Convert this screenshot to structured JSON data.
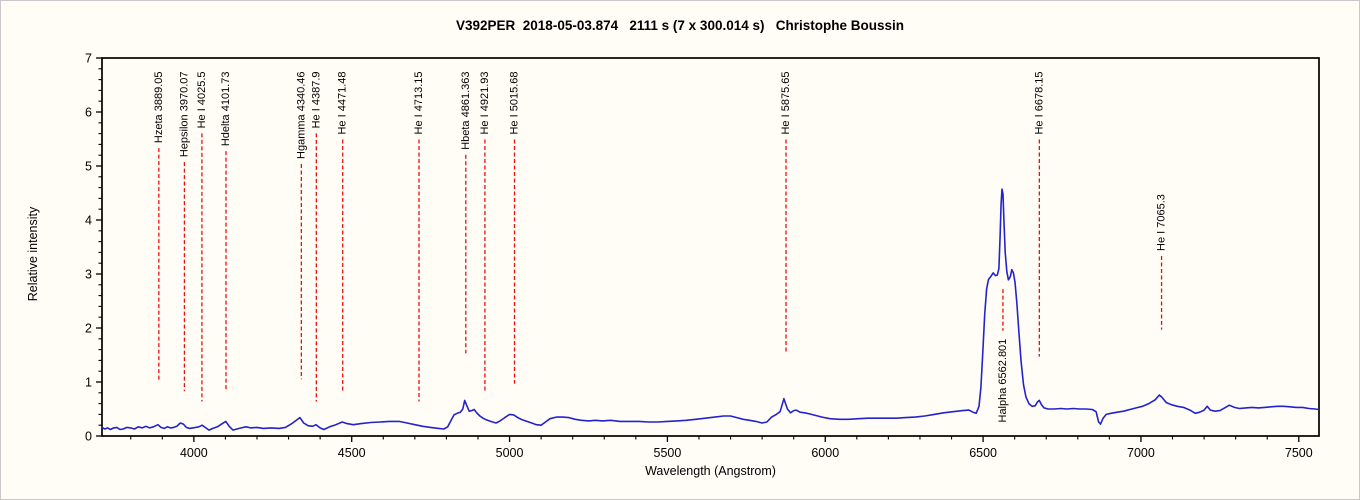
{
  "chart_data": {
    "type": "line",
    "title": "V392PER  2018-05-03.874   2111 s (7 x 300.014 s)   Christophe Boussin",
    "xlabel": "Wavelength (Angstrom)",
    "ylabel": "Relative intensity",
    "xlim": [
      3709,
      7564
    ],
    "ylim": [
      0,
      7
    ],
    "x_major_ticks": [
      4000,
      4500,
      5000,
      5500,
      6000,
      6500,
      7000,
      7500
    ],
    "x_minor_step": 100,
    "y_major_ticks": [
      0,
      1,
      2,
      3,
      4,
      5,
      6,
      7
    ],
    "y_minor_step": 0.2,
    "grid": false,
    "legend": null,
    "line_color": "#2323cd",
    "marker_color": "#e81010",
    "frame_color": "#000000",
    "spectral_line_markers": [
      {
        "label": "Hzeta 3889.05",
        "wavelength": 3889.05,
        "label_pos": "top",
        "anchor": 6.75,
        "dash_end": 1.02
      },
      {
        "label": "Hepsilon 3970.07",
        "wavelength": 3970.07,
        "label_pos": "top",
        "anchor": 6.75,
        "dash_end": 0.83
      },
      {
        "label": "He I 4025.5",
        "wavelength": 4025.5,
        "label_pos": "top",
        "anchor": 6.75,
        "dash_end": 0.64
      },
      {
        "label": "Hdelta 4101.73",
        "wavelength": 4101.73,
        "label_pos": "top",
        "anchor": 6.75,
        "dash_end": 0.82
      },
      {
        "label": "Hgamma 4340.46",
        "wavelength": 4340.46,
        "label_pos": "top",
        "anchor": 6.75,
        "dash_end": 1.05
      },
      {
        "label": "He I 4387.9",
        "wavelength": 4387.9,
        "label_pos": "top",
        "anchor": 6.75,
        "dash_end": 0.64
      },
      {
        "label": "He I 4471.48",
        "wavelength": 4471.48,
        "label_pos": "top",
        "anchor": 6.75,
        "dash_end": 0.82
      },
      {
        "label": "He I 4713.15",
        "wavelength": 4713.15,
        "label_pos": "top",
        "anchor": 6.75,
        "dash_end": 0.64
      },
      {
        "label": "Hbeta 4861.363",
        "wavelength": 4861.363,
        "label_pos": "top",
        "anchor": 6.75,
        "dash_end": 1.53
      },
      {
        "label": "He I 4921.93",
        "wavelength": 4921.93,
        "label_pos": "top",
        "anchor": 6.75,
        "dash_end": 0.82
      },
      {
        "label": "He I 5015.68",
        "wavelength": 5015.68,
        "label_pos": "top",
        "anchor": 6.75,
        "dash_end": 0.97
      },
      {
        "label": "He I 5875.65",
        "wavelength": 5875.65,
        "label_pos": "top",
        "anchor": 6.75,
        "dash_end": 1.56
      },
      {
        "label": "Halpha 6562.801",
        "wavelength": 6562.801,
        "label_pos": "below",
        "anchor": 2.72,
        "dash_end": 1.95
      },
      {
        "label": "He I 6678.15",
        "wavelength": 6678.15,
        "label_pos": "top",
        "anchor": 6.75,
        "dash_end": 1.47
      },
      {
        "label": "He I 7065.3",
        "wavelength": 7065.3,
        "label_pos": "top",
        "anchor": 4.48,
        "dash_end": 1.97
      }
    ],
    "series": [
      {
        "name": "V392PER spectrum",
        "points": [
          [
            3709,
            0.16
          ],
          [
            3718,
            0.13
          ],
          [
            3727,
            0.15
          ],
          [
            3736,
            0.12
          ],
          [
            3746,
            0.15
          ],
          [
            3756,
            0.16
          ],
          [
            3766,
            0.12
          ],
          [
            3776,
            0.13
          ],
          [
            3788,
            0.16
          ],
          [
            3800,
            0.15
          ],
          [
            3812,
            0.13
          ],
          [
            3824,
            0.17
          ],
          [
            3836,
            0.15
          ],
          [
            3848,
            0.18
          ],
          [
            3860,
            0.15
          ],
          [
            3872,
            0.17
          ],
          [
            3886,
            0.21
          ],
          [
            3896,
            0.16
          ],
          [
            3906,
            0.14
          ],
          [
            3916,
            0.17
          ],
          [
            3926,
            0.15
          ],
          [
            3936,
            0.16
          ],
          [
            3946,
            0.18
          ],
          [
            3957,
            0.24
          ],
          [
            3967,
            0.22
          ],
          [
            3976,
            0.16
          ],
          [
            3986,
            0.14
          ],
          [
            3996,
            0.15
          ],
          [
            4006,
            0.16
          ],
          [
            4016,
            0.17
          ],
          [
            4026,
            0.2
          ],
          [
            4036,
            0.16
          ],
          [
            4048,
            0.11
          ],
          [
            4060,
            0.14
          ],
          [
            4075,
            0.17
          ],
          [
            4090,
            0.23
          ],
          [
            4101,
            0.27
          ],
          [
            4112,
            0.18
          ],
          [
            4124,
            0.11
          ],
          [
            4136,
            0.13
          ],
          [
            4150,
            0.15
          ],
          [
            4165,
            0.17
          ],
          [
            4180,
            0.15
          ],
          [
            4200,
            0.16
          ],
          [
            4220,
            0.14
          ],
          [
            4245,
            0.15
          ],
          [
            4270,
            0.14
          ],
          [
            4290,
            0.16
          ],
          [
            4308,
            0.22
          ],
          [
            4322,
            0.28
          ],
          [
            4336,
            0.34
          ],
          [
            4348,
            0.24
          ],
          [
            4362,
            0.19
          ],
          [
            4376,
            0.18
          ],
          [
            4387,
            0.21
          ],
          [
            4400,
            0.15
          ],
          [
            4412,
            0.12
          ],
          [
            4430,
            0.17
          ],
          [
            4450,
            0.21
          ],
          [
            4470,
            0.26
          ],
          [
            4485,
            0.23
          ],
          [
            4505,
            0.21
          ],
          [
            4530,
            0.23
          ],
          [
            4560,
            0.25
          ],
          [
            4590,
            0.26
          ],
          [
            4620,
            0.27
          ],
          [
            4650,
            0.27
          ],
          [
            4675,
            0.24
          ],
          [
            4700,
            0.21
          ],
          [
            4725,
            0.18
          ],
          [
            4750,
            0.16
          ],
          [
            4775,
            0.14
          ],
          [
            4792,
            0.13
          ],
          [
            4804,
            0.17
          ],
          [
            4814,
            0.28
          ],
          [
            4824,
            0.39
          ],
          [
            4834,
            0.42
          ],
          [
            4844,
            0.44
          ],
          [
            4852,
            0.5
          ],
          [
            4858,
            0.66
          ],
          [
            4865,
            0.56
          ],
          [
            4872,
            0.46
          ],
          [
            4880,
            0.47
          ],
          [
            4888,
            0.49
          ],
          [
            4896,
            0.43
          ],
          [
            4906,
            0.37
          ],
          [
            4916,
            0.33
          ],
          [
            4926,
            0.3
          ],
          [
            4940,
            0.27
          ],
          [
            4957,
            0.24
          ],
          [
            4970,
            0.28
          ],
          [
            4985,
            0.34
          ],
          [
            5000,
            0.4
          ],
          [
            5013,
            0.39
          ],
          [
            5026,
            0.34
          ],
          [
            5040,
            0.3
          ],
          [
            5055,
            0.27
          ],
          [
            5070,
            0.24
          ],
          [
            5085,
            0.21
          ],
          [
            5100,
            0.2
          ],
          [
            5114,
            0.26
          ],
          [
            5128,
            0.32
          ],
          [
            5148,
            0.35
          ],
          [
            5168,
            0.35
          ],
          [
            5188,
            0.34
          ],
          [
            5208,
            0.31
          ],
          [
            5228,
            0.29
          ],
          [
            5250,
            0.28
          ],
          [
            5272,
            0.29
          ],
          [
            5294,
            0.28
          ],
          [
            5320,
            0.29
          ],
          [
            5350,
            0.27
          ],
          [
            5380,
            0.27
          ],
          [
            5410,
            0.27
          ],
          [
            5440,
            0.26
          ],
          [
            5470,
            0.26
          ],
          [
            5500,
            0.27
          ],
          [
            5530,
            0.28
          ],
          [
            5560,
            0.29
          ],
          [
            5590,
            0.31
          ],
          [
            5620,
            0.33
          ],
          [
            5650,
            0.35
          ],
          [
            5678,
            0.37
          ],
          [
            5700,
            0.37
          ],
          [
            5720,
            0.34
          ],
          [
            5740,
            0.31
          ],
          [
            5760,
            0.29
          ],
          [
            5780,
            0.27
          ],
          [
            5800,
            0.24
          ],
          [
            5815,
            0.26
          ],
          [
            5830,
            0.35
          ],
          [
            5845,
            0.4
          ],
          [
            5857,
            0.45
          ],
          [
            5869,
            0.69
          ],
          [
            5880,
            0.5
          ],
          [
            5890,
            0.43
          ],
          [
            5900,
            0.47
          ],
          [
            5908,
            0.48
          ],
          [
            5920,
            0.44
          ],
          [
            5935,
            0.43
          ],
          [
            5950,
            0.41
          ],
          [
            5970,
            0.38
          ],
          [
            5990,
            0.35
          ],
          [
            6015,
            0.32
          ],
          [
            6045,
            0.31
          ],
          [
            6075,
            0.31
          ],
          [
            6105,
            0.32
          ],
          [
            6135,
            0.33
          ],
          [
            6165,
            0.33
          ],
          [
            6195,
            0.33
          ],
          [
            6225,
            0.33
          ],
          [
            6255,
            0.34
          ],
          [
            6285,
            0.35
          ],
          [
            6315,
            0.37
          ],
          [
            6345,
            0.4
          ],
          [
            6375,
            0.43
          ],
          [
            6405,
            0.45
          ],
          [
            6435,
            0.47
          ],
          [
            6455,
            0.48
          ],
          [
            6468,
            0.44
          ],
          [
            6478,
            0.42
          ],
          [
            6487,
            0.55
          ],
          [
            6493,
            0.9
          ],
          [
            6499,
            1.55
          ],
          [
            6505,
            2.25
          ],
          [
            6511,
            2.72
          ],
          [
            6517,
            2.9
          ],
          [
            6525,
            2.96
          ],
          [
            6532,
            3.02
          ],
          [
            6539,
            2.97
          ],
          [
            6545,
            2.98
          ],
          [
            6550,
            3.1
          ],
          [
            6554,
            3.7
          ],
          [
            6557,
            4.3
          ],
          [
            6560,
            4.57
          ],
          [
            6563,
            4.48
          ],
          [
            6566,
            4.0
          ],
          [
            6570,
            3.4
          ],
          [
            6575,
            3.05
          ],
          [
            6580,
            2.89
          ],
          [
            6586,
            2.95
          ],
          [
            6591,
            3.08
          ],
          [
            6596,
            3.02
          ],
          [
            6601,
            2.85
          ],
          [
            6607,
            2.45
          ],
          [
            6613,
            1.95
          ],
          [
            6620,
            1.4
          ],
          [
            6628,
            0.95
          ],
          [
            6636,
            0.72
          ],
          [
            6645,
            0.6
          ],
          [
            6655,
            0.55
          ],
          [
            6665,
            0.56
          ],
          [
            6672,
            0.63
          ],
          [
            6678,
            0.66
          ],
          [
            6685,
            0.58
          ],
          [
            6693,
            0.52
          ],
          [
            6706,
            0.5
          ],
          [
            6726,
            0.5
          ],
          [
            6746,
            0.51
          ],
          [
            6766,
            0.5
          ],
          [
            6786,
            0.51
          ],
          [
            6806,
            0.5
          ],
          [
            6826,
            0.5
          ],
          [
            6846,
            0.49
          ],
          [
            6858,
            0.45
          ],
          [
            6866,
            0.26
          ],
          [
            6872,
            0.22
          ],
          [
            6880,
            0.33
          ],
          [
            6890,
            0.4
          ],
          [
            6905,
            0.42
          ],
          [
            6925,
            0.44
          ],
          [
            6945,
            0.46
          ],
          [
            6965,
            0.49
          ],
          [
            6985,
            0.52
          ],
          [
            7005,
            0.55
          ],
          [
            7025,
            0.6
          ],
          [
            7045,
            0.67
          ],
          [
            7058,
            0.76
          ],
          [
            7066,
            0.72
          ],
          [
            7080,
            0.62
          ],
          [
            7096,
            0.58
          ],
          [
            7115,
            0.55
          ],
          [
            7135,
            0.53
          ],
          [
            7155,
            0.48
          ],
          [
            7172,
            0.42
          ],
          [
            7186,
            0.44
          ],
          [
            7200,
            0.48
          ],
          [
            7210,
            0.55
          ],
          [
            7220,
            0.48
          ],
          [
            7235,
            0.46
          ],
          [
            7250,
            0.47
          ],
          [
            7265,
            0.52
          ],
          [
            7280,
            0.57
          ],
          [
            7296,
            0.53
          ],
          [
            7312,
            0.51
          ],
          [
            7332,
            0.52
          ],
          [
            7352,
            0.53
          ],
          [
            7372,
            0.52
          ],
          [
            7392,
            0.53
          ],
          [
            7412,
            0.54
          ],
          [
            7432,
            0.55
          ],
          [
            7452,
            0.55
          ],
          [
            7472,
            0.54
          ],
          [
            7492,
            0.53
          ],
          [
            7512,
            0.53
          ],
          [
            7532,
            0.51
          ],
          [
            7552,
            0.5
          ],
          [
            7562,
            0.49
          ]
        ]
      }
    ]
  }
}
